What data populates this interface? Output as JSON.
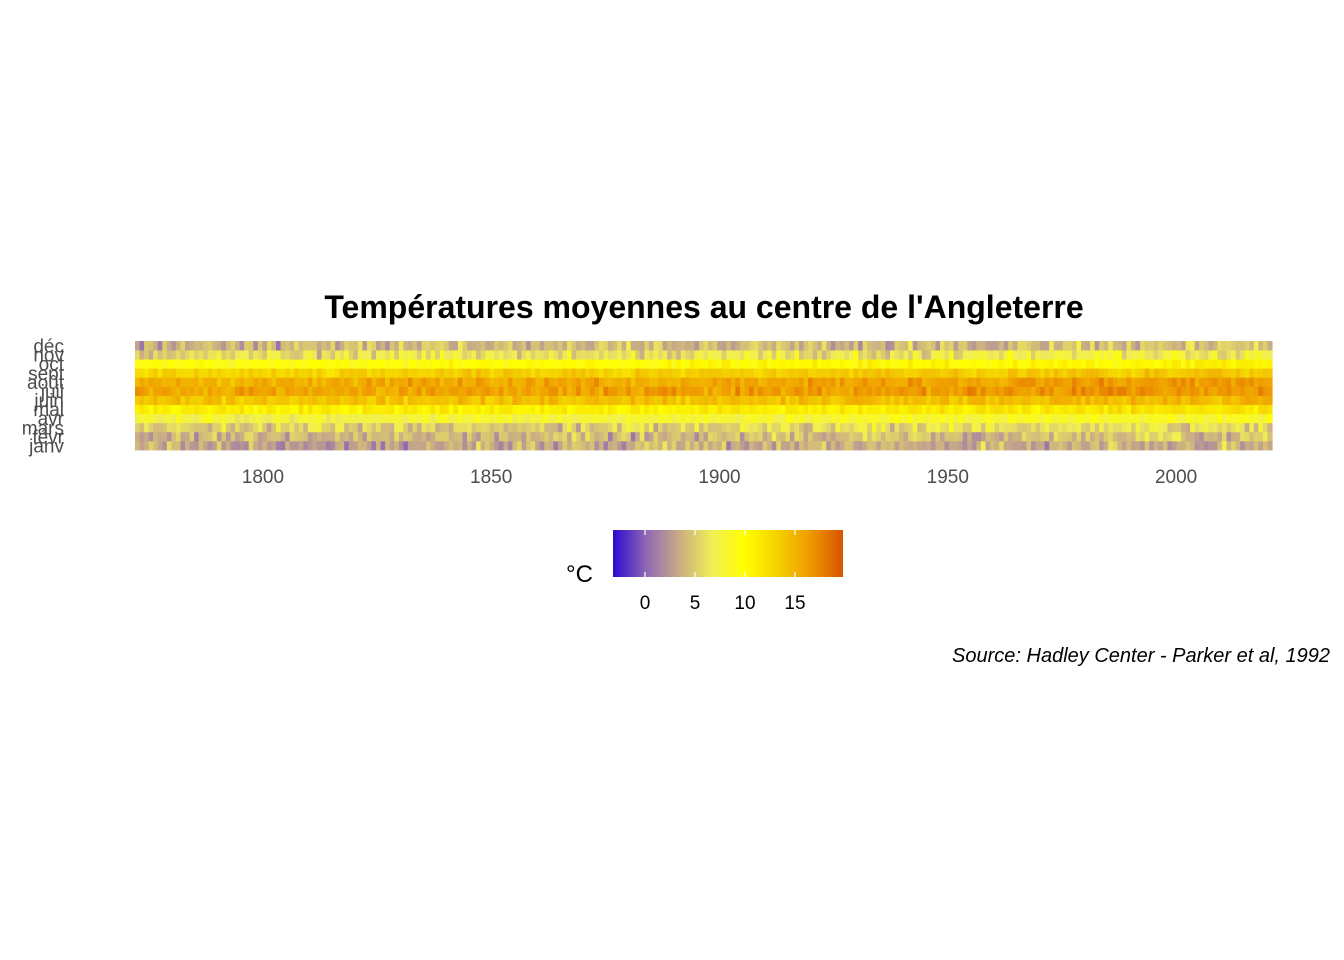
{
  "chart_data": {
    "type": "heatmap",
    "title": "Températures moyennes au centre de l'Angleterre",
    "caption": "Source: Hadley Center - Parker et al, 1992",
    "x": {
      "start_year": 1772,
      "end_year": 2021
    },
    "xlim": [
      1772,
      2021
    ],
    "x_ticks": [
      "1800",
      "1850",
      "1900",
      "1950",
      "2000"
    ],
    "y_categories": [
      "janv",
      "févr",
      "mars",
      "avr",
      "mai",
      "juin",
      "juil",
      "août",
      "sept",
      "oct",
      "nov",
      "déc"
    ],
    "monthly_mean_celsius": [
      3.5,
      4.0,
      5.5,
      8.0,
      11.3,
      14.3,
      16.2,
      15.8,
      13.5,
      10.0,
      6.3,
      4.2
    ],
    "legend": {
      "title": "°C",
      "position": "bottom",
      "ticks": [
        "0",
        "5",
        "10",
        "15"
      ],
      "range": [
        -3.2,
        19.8
      ],
      "colors": [
        "#2a0ad0",
        "#8e67b4",
        "#c9ab86",
        "#f0ee56",
        "#ffff00",
        "#f4d200",
        "#ef9a00",
        "#d85200"
      ]
    },
    "grid": false
  }
}
